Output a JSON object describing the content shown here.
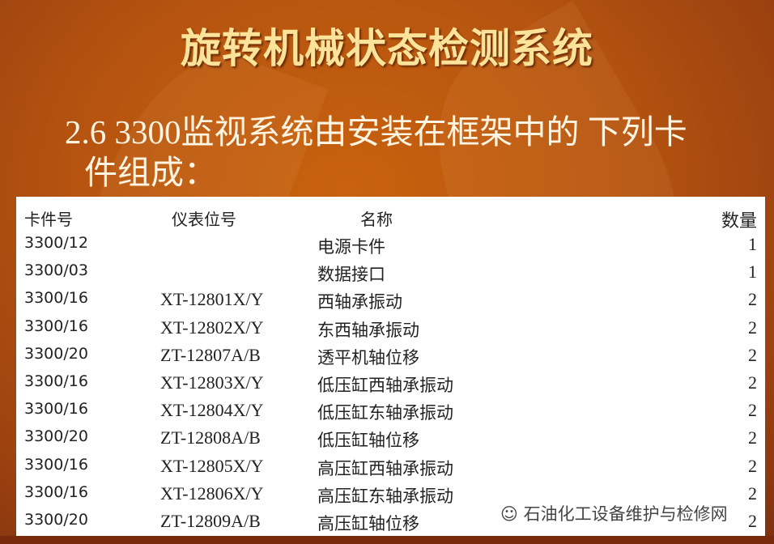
{
  "slide": {
    "title": "旋转机械状态检测系统",
    "subtitle_line1": "2.6  3300监视系统由安装在框架中的 下列卡",
    "subtitle_line2": "件组成："
  },
  "table": {
    "headers": [
      "卡件号",
      "仪表位号",
      "名称",
      "数量"
    ],
    "rows": [
      {
        "card": "3300/12",
        "tag": "",
        "name": "电源卡件",
        "qty": "1"
      },
      {
        "card": "3300/03",
        "tag": "",
        "name": "数据接口",
        "qty": "1"
      },
      {
        "card": "3300/16",
        "tag": "XT-12801X/Y",
        "name": "西轴承振动",
        "qty": "2"
      },
      {
        "card": "3300/16",
        "tag": "XT-12802X/Y",
        "name": "东西轴承振动",
        "qty": "2"
      },
      {
        "card": "3300/20",
        "tag": "ZT-12807A/B",
        "name": "透平机轴位移",
        "qty": "2"
      },
      {
        "card": "3300/16",
        "tag": "XT-12803X/Y",
        "name": "低压缸西轴承振动",
        "qty": "2"
      },
      {
        "card": "3300/16",
        "tag": "XT-12804X/Y",
        "name": "低压缸东轴承振动",
        "qty": "2"
      },
      {
        "card": "3300/20",
        "tag": "ZT-12808A/B",
        "name": "低压缸轴位移",
        "qty": "2"
      },
      {
        "card": "3300/16",
        "tag": "XT-12805X/Y",
        "name": "高压缸西轴承振动",
        "qty": "2"
      },
      {
        "card": "3300/16",
        "tag": "XT-12806X/Y",
        "name": "高压缸东轴承振动",
        "qty": "2"
      },
      {
        "card": "3300/20",
        "tag": "ZT-12809A/B",
        "name": "高压缸轴位移",
        "qty": "2"
      }
    ]
  },
  "watermark": {
    "icon": "wechat-icon",
    "text": "石油化工设备维护与检修网"
  },
  "colors": {
    "background": "#b65410",
    "title": "#fbe39a",
    "subtitle": "#fff5e2"
  }
}
